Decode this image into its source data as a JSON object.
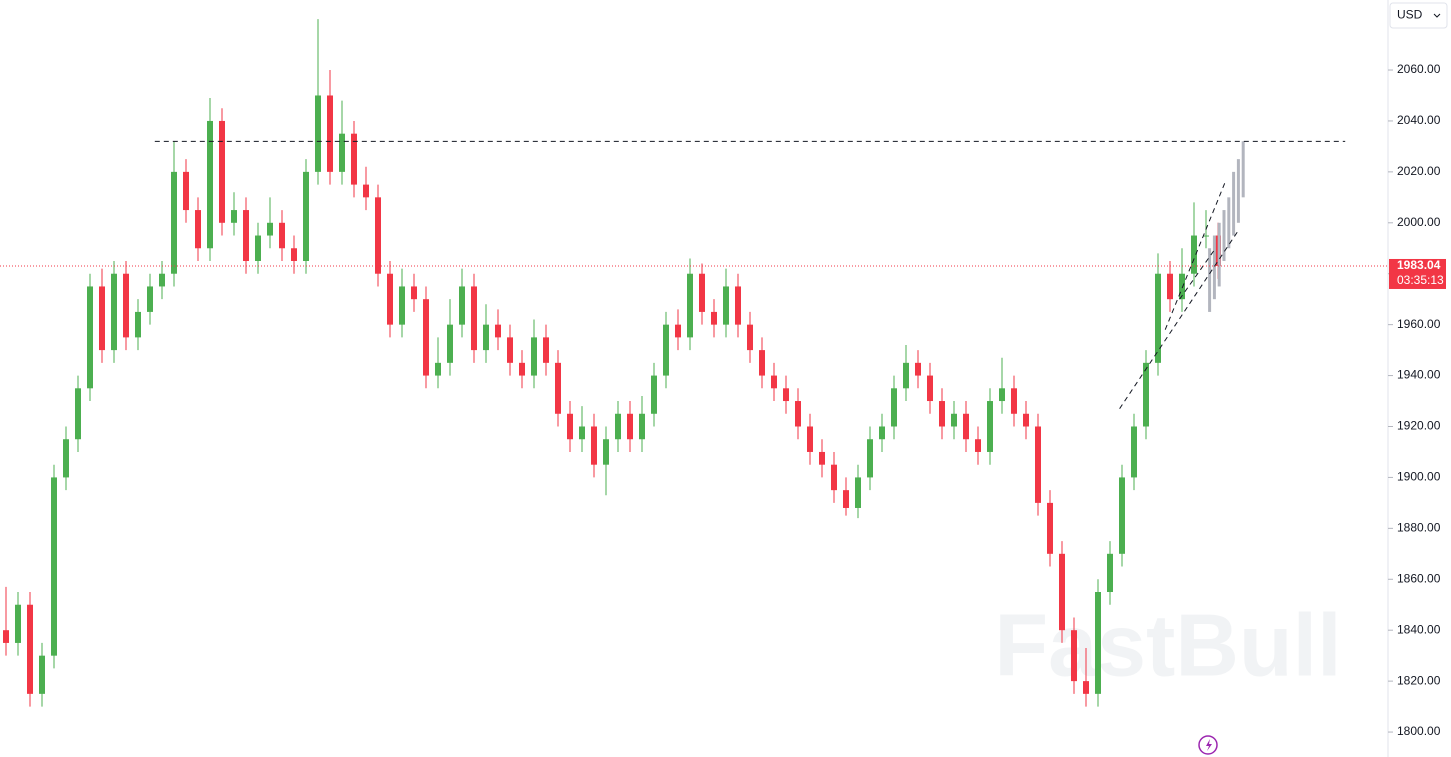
{
  "chart_data": {
    "type": "candlestick",
    "currency": "USD",
    "watermark": "FastBull",
    "up_color": "#4caf50",
    "down_color": "#f23645",
    "open": [
      1840,
      1835,
      1850,
      1815,
      1830,
      1900,
      1915,
      1935,
      1975,
      1950,
      1980,
      1955,
      1965,
      1975,
      1980,
      2020,
      2005,
      1990,
      2040,
      2000,
      2005,
      1985,
      1995,
      2000,
      1990,
      1985,
      2020,
      2050,
      2020,
      2035,
      2015,
      2010,
      1980,
      1960,
      1975,
      1970,
      1940,
      1945,
      1960,
      1975,
      1950,
      1960,
      1955,
      1945,
      1940,
      1955,
      1945,
      1925,
      1915,
      1920,
      1905,
      1915,
      1925,
      1915,
      1925,
      1940,
      1960,
      1955,
      1980,
      1965,
      1960,
      1975,
      1960,
      1950,
      1940,
      1935,
      1930,
      1920,
      1910,
      1905,
      1895,
      1888,
      1900,
      1915,
      1920,
      1935,
      1945,
      1940,
      1930,
      1920,
      1925,
      1915,
      1910,
      1930,
      1935,
      1925,
      1920,
      1890,
      1870,
      1840,
      1820,
      1815,
      1855,
      1870,
      1900,
      1920,
      1945,
      1980,
      1970,
      1980,
      1995,
      1995
    ],
    "high": [
      1857,
      1855,
      1855,
      1835,
      1905,
      1920,
      1940,
      1980,
      1982,
      1985,
      1985,
      1970,
      1980,
      1985,
      2032,
      2025,
      2010,
      2049,
      2045,
      2012,
      2010,
      2000,
      2010,
      2005,
      1995,
      2025,
      2080,
      2060,
      2048,
      2040,
      2022,
      2015,
      1985,
      1982,
      1980,
      1975,
      1955,
      1970,
      1982,
      1980,
      1968,
      1966,
      1960,
      1950,
      1962,
      1960,
      1950,
      1930,
      1928,
      1925,
      1920,
      1930,
      1930,
      1932,
      1945,
      1965,
      1966,
      1986,
      1984,
      1970,
      1982,
      1980,
      1965,
      1955,
      1945,
      1940,
      1935,
      1925,
      1915,
      1910,
      1900,
      1905,
      1920,
      1925,
      1940,
      1952,
      1950,
      1945,
      1935,
      1930,
      1930,
      1920,
      1935,
      1947,
      1940,
      1930,
      1925,
      1895,
      1875,
      1845,
      1833,
      1860,
      1875,
      1905,
      1925,
      1950,
      1988,
      1985,
      1990,
      2008,
      2005,
      2000
    ],
    "low": [
      1830,
      1830,
      1810,
      1810,
      1825,
      1895,
      1910,
      1930,
      1945,
      1945,
      1950,
      1950,
      1960,
      1970,
      1975,
      2000,
      1985,
      1985,
      1995,
      1995,
      1980,
      1980,
      1990,
      1985,
      1980,
      1980,
      2015,
      2015,
      2015,
      2010,
      2005,
      1975,
      1955,
      1955,
      1965,
      1935,
      1935,
      1940,
      1955,
      1945,
      1945,
      1950,
      1940,
      1935,
      1935,
      1940,
      1920,
      1910,
      1910,
      1900,
      1893,
      1910,
      1910,
      1910,
      1920,
      1935,
      1950,
      1950,
      1960,
      1955,
      1955,
      1955,
      1945,
      1935,
      1930,
      1925,
      1915,
      1905,
      1900,
      1890,
      1885,
      1884,
      1895,
      1910,
      1915,
      1930,
      1935,
      1925,
      1915,
      1915,
      1910,
      1905,
      1905,
      1925,
      1920,
      1915,
      1885,
      1865,
      1835,
      1815,
      1810,
      1810,
      1850,
      1865,
      1895,
      1915,
      1940,
      1965,
      1965,
      1975,
      1990,
      1978
    ],
    "close": [
      1835,
      1850,
      1815,
      1830,
      1900,
      1915,
      1935,
      1975,
      1950,
      1980,
      1955,
      1965,
      1975,
      1980,
      2020,
      2005,
      1990,
      2040,
      2000,
      2005,
      1985,
      1995,
      2000,
      1990,
      1985,
      2020,
      2050,
      2020,
      2035,
      2015,
      2010,
      1980,
      1960,
      1975,
      1970,
      1940,
      1945,
      1960,
      1975,
      1950,
      1960,
      1955,
      1945,
      1940,
      1955,
      1945,
      1925,
      1915,
      1920,
      1905,
      1915,
      1925,
      1915,
      1925,
      1940,
      1960,
      1955,
      1980,
      1965,
      1960,
      1975,
      1960,
      1950,
      1940,
      1935,
      1930,
      1920,
      1910,
      1905,
      1895,
      1888,
      1900,
      1915,
      1920,
      1935,
      1945,
      1940,
      1930,
      1920,
      1925,
      1915,
      1910,
      1930,
      1935,
      1925,
      1920,
      1890,
      1870,
      1840,
      1820,
      1815,
      1855,
      1870,
      1900,
      1920,
      1945,
      1980,
      1970,
      1980,
      1995,
      1995,
      1983.04
    ],
    "projection": {
      "color": "#b2b5be",
      "x": [
        100.3,
        100.7,
        101.1,
        101.5,
        101.9,
        102.3,
        102.7,
        103.1
      ],
      "high": [
        1990,
        1995,
        2000,
        2005,
        2010,
        2020,
        2025,
        2032
      ],
      "low": [
        1965,
        1970,
        1975,
        1985,
        1990,
        1995,
        2000,
        2010
      ]
    },
    "resistance": {
      "value": 2032,
      "x": [
        12.4,
        111.6
      ]
    },
    "trendlines": [
      {
        "x": [
          92.8,
          102.7
        ],
        "y": [
          1927,
          1997
        ]
      },
      {
        "x": [
          96.6,
          101.6
        ],
        "y": [
          1958,
          2016
        ]
      },
      {
        "x": [
          97.8,
          100.8
        ],
        "y": [
          1970,
          1990
        ]
      }
    ],
    "last_price": 1983.04,
    "countdown": "03:35:13",
    "ylim": [
      1790.2,
      2087.5
    ],
    "yticks": [
      {
        "value": 1800,
        "label": "1800.00"
      },
      {
        "value": 1820,
        "label": "1820.00"
      },
      {
        "value": 1840,
        "label": "1840.00"
      },
      {
        "value": 1860,
        "label": "1860.00"
      },
      {
        "value": 1880,
        "label": "1880.00"
      },
      {
        "value": 1900,
        "label": "1900.00"
      },
      {
        "value": 1920,
        "label": "1920.00"
      },
      {
        "value": 1940,
        "label": "1940.00"
      },
      {
        "value": 1960,
        "label": "1960.00"
      },
      {
        "value": 1980,
        "label": "1980.00"
      },
      {
        "value": 2000,
        "label": "2000.00"
      },
      {
        "value": 2020,
        "label": "2020.00"
      },
      {
        "value": 2040,
        "label": "2040.00"
      },
      {
        "value": 2060,
        "label": "2060.00"
      }
    ]
  }
}
